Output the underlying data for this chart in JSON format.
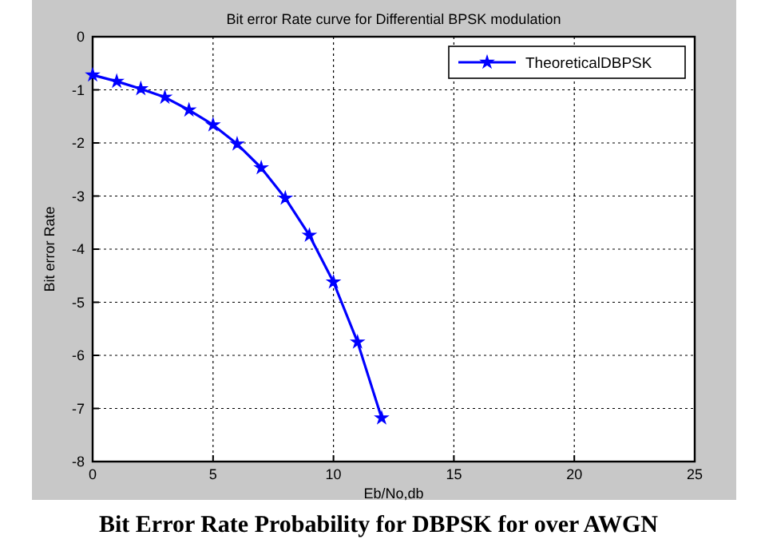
{
  "chart_data": {
    "type": "line",
    "title": "Bit error Rate curve for Differential BPSK modulation",
    "xlabel": "Eb/No,db",
    "ylabel": "Bit error Rate",
    "x": [
      0,
      1,
      2,
      3,
      4,
      5,
      6,
      7,
      8,
      9,
      10,
      11,
      12
    ],
    "series": [
      {
        "name": "TheoreticalDBPSK",
        "color": "#0000ff",
        "values": [
          -0.72,
          -0.84,
          -0.98,
          -1.14,
          -1.38,
          -1.66,
          -2.02,
          -2.47,
          -3.04,
          -3.74,
          -4.62,
          -5.75,
          -7.18
        ]
      }
    ],
    "xlim": [
      0,
      25
    ],
    "xticks": [
      0,
      5,
      10,
      15,
      20,
      25
    ],
    "ylim": [
      -8,
      0
    ],
    "yticks": [
      -8,
      -7,
      -6,
      -5,
      -4,
      -3,
      -2,
      -1,
      0
    ],
    "grid": true,
    "legend": "top right",
    "marker": "star",
    "line_style": "solid",
    "annotations": [
      "Bit Error Rate Probability for DBPSK for over AWGN"
    ]
  }
}
